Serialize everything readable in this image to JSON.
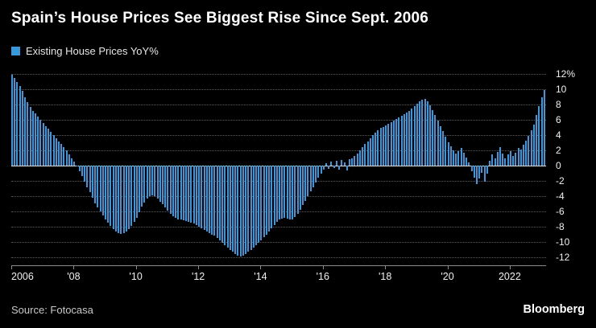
{
  "header": {
    "title": "Spain’s House Prices See Biggest Rise Since Sept. 2006"
  },
  "legend": {
    "label": "Existing House Prices YoY%",
    "color": "#3798db"
  },
  "chart_data": {
    "type": "bar",
    "title": "Spain’s House Prices See Biggest Rise Since Sept. 2006",
    "series_name": "Existing House Prices YoY%",
    "x_start": "2006-01",
    "frequency": "monthly",
    "ylabel": "Existing House Prices YoY%",
    "ylim": [
      -12,
      12
    ],
    "grid": true,
    "bar_color": "#3798db",
    "yticks": [
      12,
      10,
      8,
      6,
      4,
      2,
      0,
      -2,
      -4,
      -6,
      -8,
      -10,
      -12
    ],
    "ytick_labels": [
      "12%",
      "10",
      "8",
      "6",
      "4",
      "2",
      "0",
      "-2",
      "-4",
      "-6",
      "-8",
      "-10",
      "-12"
    ],
    "xtick_labels": [
      "2006",
      "'08",
      "'10",
      "'12",
      "'14",
      "'16",
      "'18",
      "'20",
      "2022"
    ],
    "xtick_months": [
      0,
      24,
      48,
      72,
      96,
      120,
      144,
      168,
      192
    ],
    "values": [
      11.9,
      11.5,
      11.0,
      10.4,
      9.8,
      9.0,
      8.3,
      7.7,
      7.2,
      6.8,
      6.4,
      6.0,
      5.6,
      5.2,
      4.8,
      4.4,
      4.0,
      3.6,
      3.2,
      2.8,
      2.4,
      2.0,
      1.5,
      1.0,
      0.5,
      -0.1,
      -0.7,
      -1.4,
      -2.1,
      -2.8,
      -3.5,
      -4.2,
      -4.9,
      -5.5,
      -6.0,
      -6.5,
      -7.0,
      -7.5,
      -7.9,
      -8.3,
      -8.6,
      -8.8,
      -8.9,
      -8.8,
      -8.6,
      -8.3,
      -7.9,
      -7.4,
      -6.8,
      -6.1,
      -5.4,
      -4.8,
      -4.3,
      -4.0,
      -3.9,
      -4.0,
      -4.3,
      -4.7,
      -5.1,
      -5.5,
      -5.9,
      -6.3,
      -6.6,
      -6.8,
      -7.0,
      -7.1,
      -7.2,
      -7.3,
      -7.4,
      -7.5,
      -7.6,
      -7.8,
      -8.0,
      -8.2,
      -8.4,
      -8.6,
      -8.8,
      -9.0,
      -9.2,
      -9.5,
      -9.8,
      -10.1,
      -10.4,
      -10.7,
      -11.0,
      -11.3,
      -11.6,
      -11.8,
      -11.9,
      -11.8,
      -11.6,
      -11.3,
      -11.0,
      -10.7,
      -10.4,
      -10.1,
      -9.8,
      -9.4,
      -9.0,
      -8.6,
      -8.2,
      -7.8,
      -7.4,
      -7.1,
      -6.9,
      -6.8,
      -6.9,
      -7.1,
      -7.0,
      -6.7,
      -6.3,
      -5.8,
      -5.2,
      -4.6,
      -4.0,
      -3.4,
      -2.8,
      -2.2,
      -1.6,
      -1.0,
      -0.5,
      0.3,
      -0.4,
      0.5,
      -0.3,
      0.6,
      -0.5,
      0.7,
      0.4,
      -0.6,
      0.8,
      1.0,
      1.3,
      1.6,
      2.0,
      2.4,
      2.8,
      3.2,
      3.6,
      4.0,
      4.3,
      4.6,
      4.9,
      5.1,
      5.3,
      5.5,
      5.7,
      5.9,
      6.1,
      6.3,
      6.5,
      6.7,
      6.9,
      7.2,
      7.5,
      7.8,
      8.1,
      8.4,
      8.6,
      8.7,
      8.4,
      7.9,
      7.3,
      6.6,
      5.9,
      5.2,
      4.5,
      3.8,
      3.1,
      2.5,
      2.0,
      1.6,
      1.9,
      2.3,
      1.7,
      1.1,
      0.4,
      -0.7,
      -1.6,
      -2.4,
      -1.7,
      -0.9,
      -2.1,
      -1.1,
      0.6,
      1.5,
      0.9,
      1.8,
      2.4,
      1.6,
      1.0,
      1.5,
      1.9,
      1.3,
      1.7,
      2.3,
      2.1,
      2.7,
      3.3,
      3.9,
      4.6,
      5.4,
      6.6,
      7.8,
      9.0,
      9.9
    ]
  },
  "footer": {
    "source": "Source: Fotocasa",
    "logo": "Bloomberg"
  }
}
